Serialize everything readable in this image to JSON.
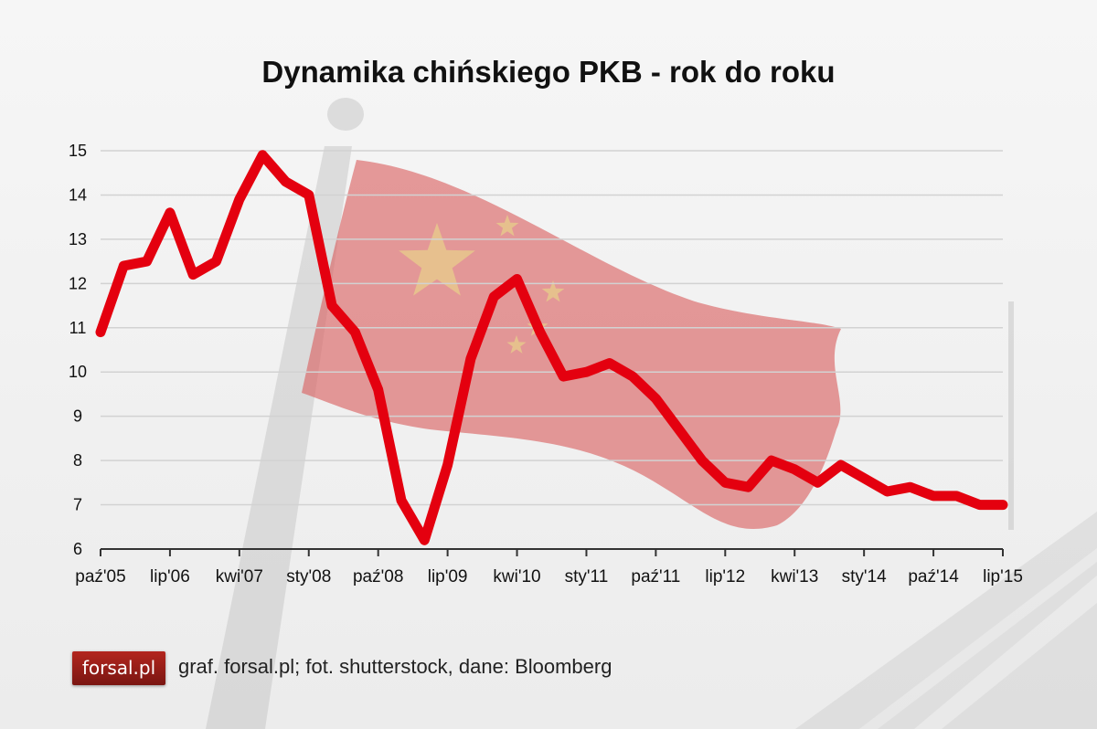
{
  "title": "Dynamika chińskiego PKB - rok do roku",
  "footer": {
    "logo_text": "forsal.pl",
    "credits": "graf. forsal.pl; fot. shutterstock, dane: Bloomberg"
  },
  "colors": {
    "line": "#e4000f",
    "grid": "#d2d2d2",
    "axis": "#333333",
    "flag": "#d85a5a",
    "star": "#e8d28a"
  },
  "chart_data": {
    "type": "line",
    "title": "Dynamika chińskiego PKB - rok do roku",
    "xlabel": "",
    "ylabel": "",
    "ylim": [
      6,
      15
    ],
    "yticks": [
      6,
      7,
      8,
      9,
      10,
      11,
      12,
      13,
      14,
      15
    ],
    "grid": true,
    "x_tick_labels": [
      "paź'05",
      "lip'06",
      "kwi'07",
      "sty'08",
      "paź'08",
      "lip'09",
      "kwi'10",
      "sty'11",
      "paź'11",
      "lip'12",
      "kwi'13",
      "sty'14",
      "paź'14",
      "lip'15"
    ],
    "x_tick_label_positions": [
      0,
      3,
      6,
      9,
      12,
      15,
      18,
      21,
      24,
      27,
      30,
      33,
      36,
      39
    ],
    "series": [
      {
        "values": [
          10.9,
          12.4,
          12.5,
          13.6,
          12.2,
          12.5,
          13.9,
          14.9,
          14.3,
          14.0,
          11.5,
          10.9,
          9.6,
          7.1,
          6.2,
          7.9,
          10.3,
          11.7,
          12.1,
          10.9,
          9.9,
          10.0,
          10.2,
          9.9,
          9.4,
          8.7,
          8.0,
          7.5,
          7.4,
          8.0,
          7.8,
          7.5,
          7.9,
          7.6,
          7.3,
          7.4,
          7.2,
          7.2,
          7.0,
          7.0
        ]
      }
    ]
  }
}
